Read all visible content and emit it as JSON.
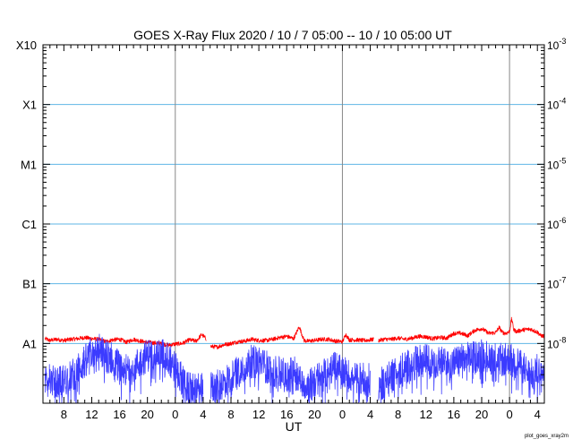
{
  "chart_data": {
    "type": "line",
    "title": "GOES X-Ray Flux   2020 / 10 /  7   05:00 -- 10 / 10   05:00   UT",
    "xlabel": "UT",
    "ylabel": "",
    "x_range_hours": [
      5,
      77
    ],
    "x_ticks": [
      {
        "h": 8,
        "label": "8"
      },
      {
        "h": 12,
        "label": "12"
      },
      {
        "h": 16,
        "label": "16"
      },
      {
        "h": 20,
        "label": "20"
      },
      {
        "h": 24,
        "label": "0"
      },
      {
        "h": 28,
        "label": "4"
      },
      {
        "h": 32,
        "label": "8"
      },
      {
        "h": 36,
        "label": "12"
      },
      {
        "h": 40,
        "label": "16"
      },
      {
        "h": 44,
        "label": "20"
      },
      {
        "h": 48,
        "label": "0"
      },
      {
        "h": 52,
        "label": "4"
      },
      {
        "h": 56,
        "label": "8"
      },
      {
        "h": 60,
        "label": "12"
      },
      {
        "h": 64,
        "label": "16"
      },
      {
        "h": 68,
        "label": "20"
      },
      {
        "h": 72,
        "label": "0"
      },
      {
        "h": 76,
        "label": "4"
      }
    ],
    "day_boundaries_hours": [
      24,
      48,
      72
    ],
    "y_scale": "log",
    "ylim_exp": [
      -9,
      -3
    ],
    "left_axis_labels": [
      {
        "exp": -3,
        "label": "X10"
      },
      {
        "exp": -4,
        "label": "X1"
      },
      {
        "exp": -5,
        "label": "M1"
      },
      {
        "exp": -6,
        "label": "C1"
      },
      {
        "exp": -7,
        "label": "B1"
      },
      {
        "exp": -8,
        "label": "A1"
      }
    ],
    "right_axis_labels": [
      {
        "exp": -3,
        "base": "10",
        "sup": "-3"
      },
      {
        "exp": -4,
        "base": "10",
        "sup": "-4"
      },
      {
        "exp": -5,
        "base": "10",
        "sup": "-5"
      },
      {
        "exp": -6,
        "base": "10",
        "sup": "-6"
      },
      {
        "exp": -7,
        "base": "10",
        "sup": "-7"
      },
      {
        "exp": -8,
        "base": "10",
        "sup": "-8"
      }
    ],
    "grid": {
      "horizontal_class_lines": true,
      "vertical_day_lines": true
    },
    "series": [
      {
        "color": "#ff0000",
        "exp_points": [
          [
            5.3,
            -7.92
          ],
          [
            6,
            -7.95
          ],
          [
            7,
            -7.93
          ],
          [
            8,
            -7.95
          ],
          [
            9,
            -7.93
          ],
          [
            10,
            -7.92
          ],
          [
            11,
            -7.9
          ],
          [
            12,
            -7.92
          ],
          [
            13,
            -7.93
          ],
          [
            14,
            -7.97
          ],
          [
            15,
            -7.94
          ],
          [
            16,
            -7.93
          ],
          [
            17,
            -7.98
          ],
          [
            18,
            -7.93
          ],
          [
            19,
            -7.96
          ],
          [
            20,
            -7.98
          ],
          [
            21,
            -7.99
          ],
          [
            22,
            -8.0
          ],
          [
            23,
            -8.03
          ],
          [
            24,
            -8.01
          ],
          [
            25,
            -8.0
          ],
          [
            26,
            -7.94
          ],
          [
            27,
            -7.96
          ],
          [
            27.8,
            -7.85
          ],
          [
            28.5,
            -7.93
          ],
          [
            29.1,
            -8.05
          ],
          [
            30,
            -8.06
          ],
          [
            31,
            -8.02
          ],
          [
            32,
            -8.0
          ],
          [
            33,
            -7.97
          ],
          [
            34,
            -7.96
          ],
          [
            35,
            -7.93
          ],
          [
            36,
            -7.95
          ],
          [
            37,
            -7.95
          ],
          [
            38,
            -7.93
          ],
          [
            39,
            -7.9
          ],
          [
            40,
            -7.88
          ],
          [
            41,
            -7.92
          ],
          [
            41.8,
            -7.72
          ],
          [
            42.5,
            -7.95
          ],
          [
            43,
            -7.96
          ],
          [
            44,
            -7.95
          ],
          [
            45,
            -7.93
          ],
          [
            46,
            -7.93
          ],
          [
            47,
            -7.96
          ],
          [
            48,
            -7.97
          ],
          [
            48.5,
            -7.85
          ],
          [
            49,
            -7.94
          ],
          [
            50,
            -7.94
          ],
          [
            51,
            -7.95
          ],
          [
            52,
            -7.94
          ],
          [
            52.5,
            -7.93
          ],
          [
            53.2,
            -7.95
          ],
          [
            54,
            -7.93
          ],
          [
            55,
            -7.93
          ],
          [
            56,
            -7.91
          ],
          [
            57,
            -7.93
          ],
          [
            58,
            -7.91
          ],
          [
            59,
            -7.88
          ],
          [
            60,
            -7.89
          ],
          [
            61,
            -7.92
          ],
          [
            62,
            -7.9
          ],
          [
            63,
            -7.91
          ],
          [
            64,
            -7.83
          ],
          [
            65,
            -7.83
          ],
          [
            66,
            -7.87
          ],
          [
            67,
            -7.78
          ],
          [
            68,
            -7.75
          ],
          [
            69,
            -7.83
          ],
          [
            70,
            -7.82
          ],
          [
            70.5,
            -7.73
          ],
          [
            71,
            -7.82
          ],
          [
            71.5,
            -7.83
          ],
          [
            72,
            -7.8
          ],
          [
            72.3,
            -7.58
          ],
          [
            72.6,
            -7.77
          ],
          [
            73,
            -7.8
          ],
          [
            74,
            -7.77
          ],
          [
            75,
            -7.76
          ],
          [
            76,
            -7.81
          ],
          [
            76.5,
            -7.87
          ],
          [
            77,
            -7.88
          ]
        ],
        "gaps_hours": [
          [
            28.7,
            29.0
          ],
          [
            52.7,
            53.0
          ]
        ]
      },
      {
        "color": "#3b3bff",
        "exp_points": [
          [
            5.3,
            -8.55
          ],
          [
            6,
            -8.6
          ],
          [
            7,
            -8.65
          ],
          [
            8,
            -8.62
          ],
          [
            9,
            -8.55
          ],
          [
            10,
            -8.45
          ],
          [
            11,
            -8.3
          ],
          [
            12,
            -8.15
          ],
          [
            13,
            -8.1
          ],
          [
            14,
            -8.2
          ],
          [
            15,
            -8.25
          ],
          [
            16,
            -8.4
          ],
          [
            17,
            -8.45
          ],
          [
            18,
            -8.4
          ],
          [
            19,
            -8.3
          ],
          [
            20,
            -8.2
          ],
          [
            21,
            -8.15
          ],
          [
            22,
            -8.18
          ],
          [
            23,
            -8.25
          ],
          [
            24,
            -8.4
          ],
          [
            25,
            -8.6
          ],
          [
            26,
            -8.75
          ],
          [
            27,
            -8.8
          ],
          [
            28,
            -8.7
          ],
          [
            29.1,
            -8.75
          ],
          [
            30,
            -8.72
          ],
          [
            31,
            -8.65
          ],
          [
            32,
            -8.55
          ],
          [
            33,
            -8.45
          ],
          [
            34,
            -8.35
          ],
          [
            35,
            -8.3
          ],
          [
            36,
            -8.32
          ],
          [
            37,
            -8.38
          ],
          [
            38,
            -8.45
          ],
          [
            39,
            -8.5
          ],
          [
            40,
            -8.55
          ],
          [
            41,
            -8.45
          ],
          [
            42,
            -8.6
          ],
          [
            43,
            -8.7
          ],
          [
            44,
            -8.65
          ],
          [
            45,
            -8.55
          ],
          [
            46,
            -8.45
          ],
          [
            47,
            -8.4
          ],
          [
            48,
            -8.45
          ],
          [
            49,
            -8.55
          ],
          [
            50,
            -8.6
          ],
          [
            51,
            -8.58
          ],
          [
            52,
            -8.62
          ],
          [
            53.2,
            -8.7
          ],
          [
            54,
            -8.65
          ],
          [
            55,
            -8.55
          ],
          [
            56,
            -8.45
          ],
          [
            57,
            -8.4
          ],
          [
            58,
            -8.35
          ],
          [
            59,
            -8.3
          ],
          [
            60,
            -8.28
          ],
          [
            61,
            -8.3
          ],
          [
            62,
            -8.32
          ],
          [
            63,
            -8.35
          ],
          [
            64,
            -8.32
          ],
          [
            65,
            -8.28
          ],
          [
            66,
            -8.25
          ],
          [
            67,
            -8.22
          ],
          [
            68,
            -8.2
          ],
          [
            69,
            -8.22
          ],
          [
            70,
            -8.25
          ],
          [
            71,
            -8.28
          ],
          [
            72,
            -8.25
          ],
          [
            73,
            -8.3
          ],
          [
            74,
            -8.4
          ],
          [
            75,
            -8.55
          ],
          [
            76,
            -8.45
          ],
          [
            77,
            -8.4
          ]
        ],
        "gaps_hours": [
          [
            28.7,
            29.0
          ],
          [
            52.7,
            53.0
          ]
        ]
      }
    ],
    "grid_line_color": "#5fb6e6",
    "day_line_color": "#888888"
  },
  "footer_note": "plot_goes_xray2m"
}
